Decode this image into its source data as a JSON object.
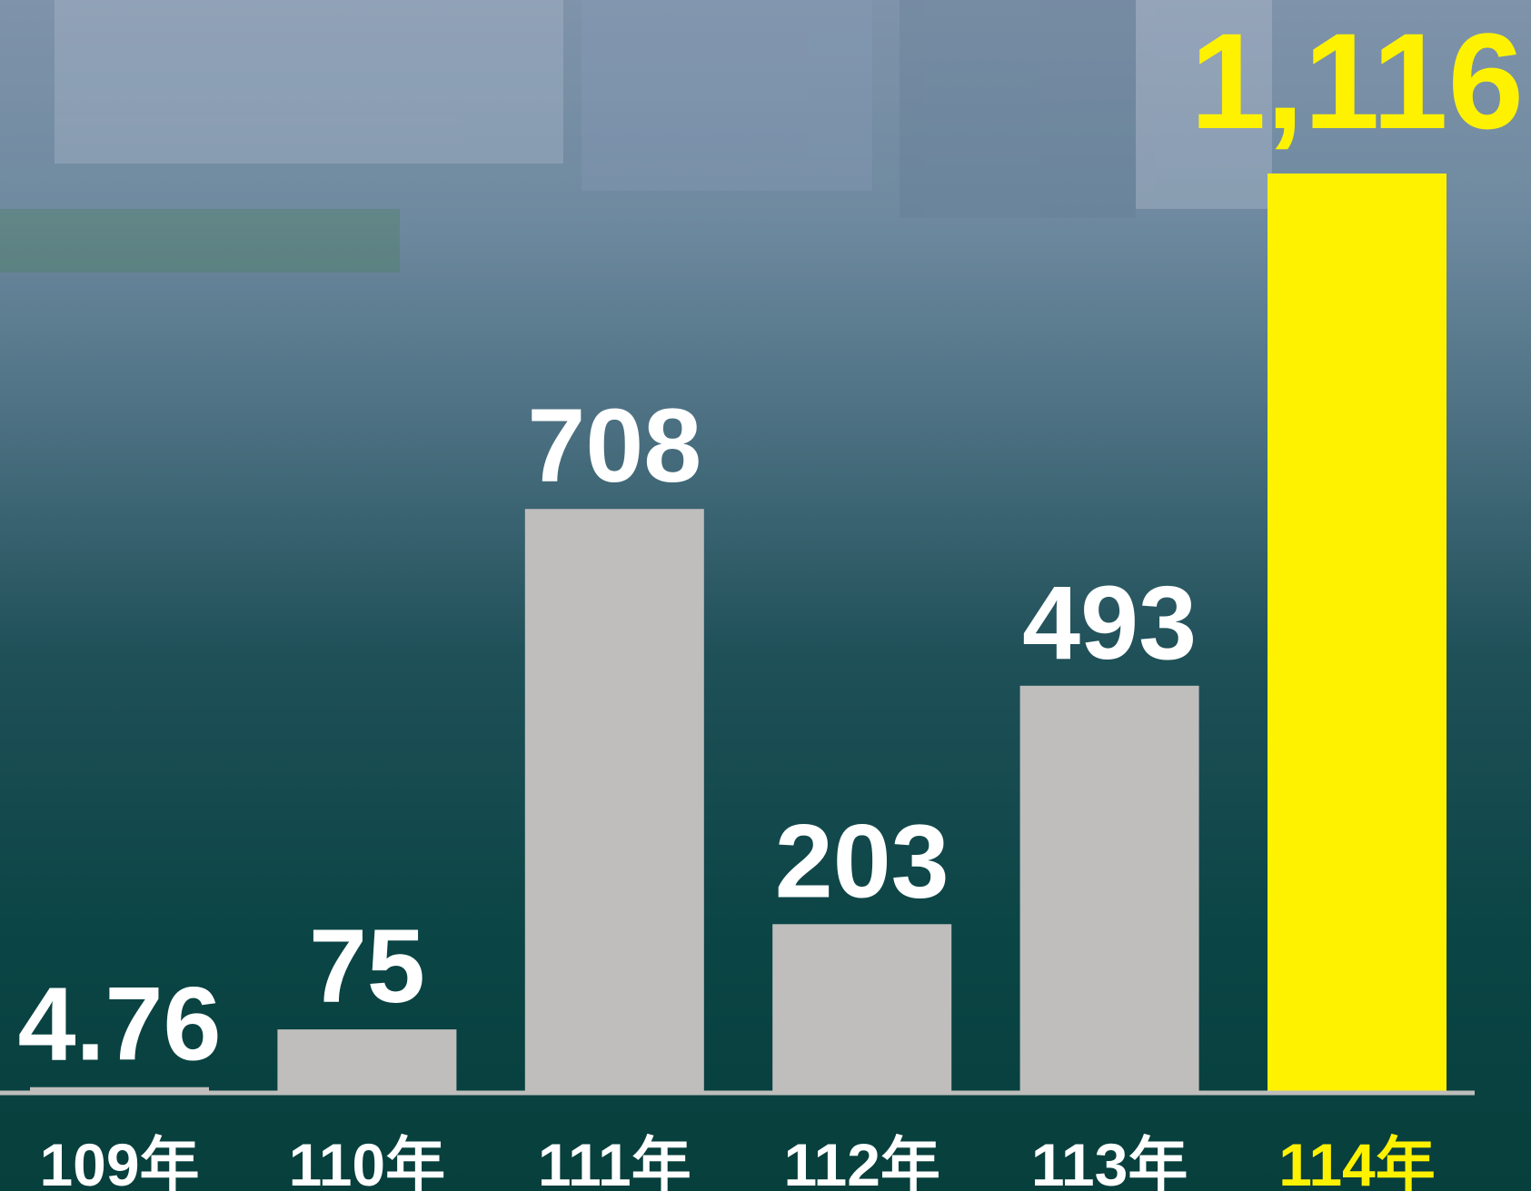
{
  "chart_data": {
    "type": "bar",
    "categories": [
      "109年",
      "110年",
      "111年",
      "112年",
      "113年",
      "114年"
    ],
    "values": [
      4.76,
      75,
      708,
      203,
      493,
      1116
    ],
    "value_labels": [
      "4.76",
      "75",
      "708",
      "203",
      "493",
      "1,116"
    ],
    "colors": [
      "#bfbebd",
      "#bfbebd",
      "#bfbebd",
      "#bfbebd",
      "#bfbebd",
      "#fff200"
    ]
  }
}
